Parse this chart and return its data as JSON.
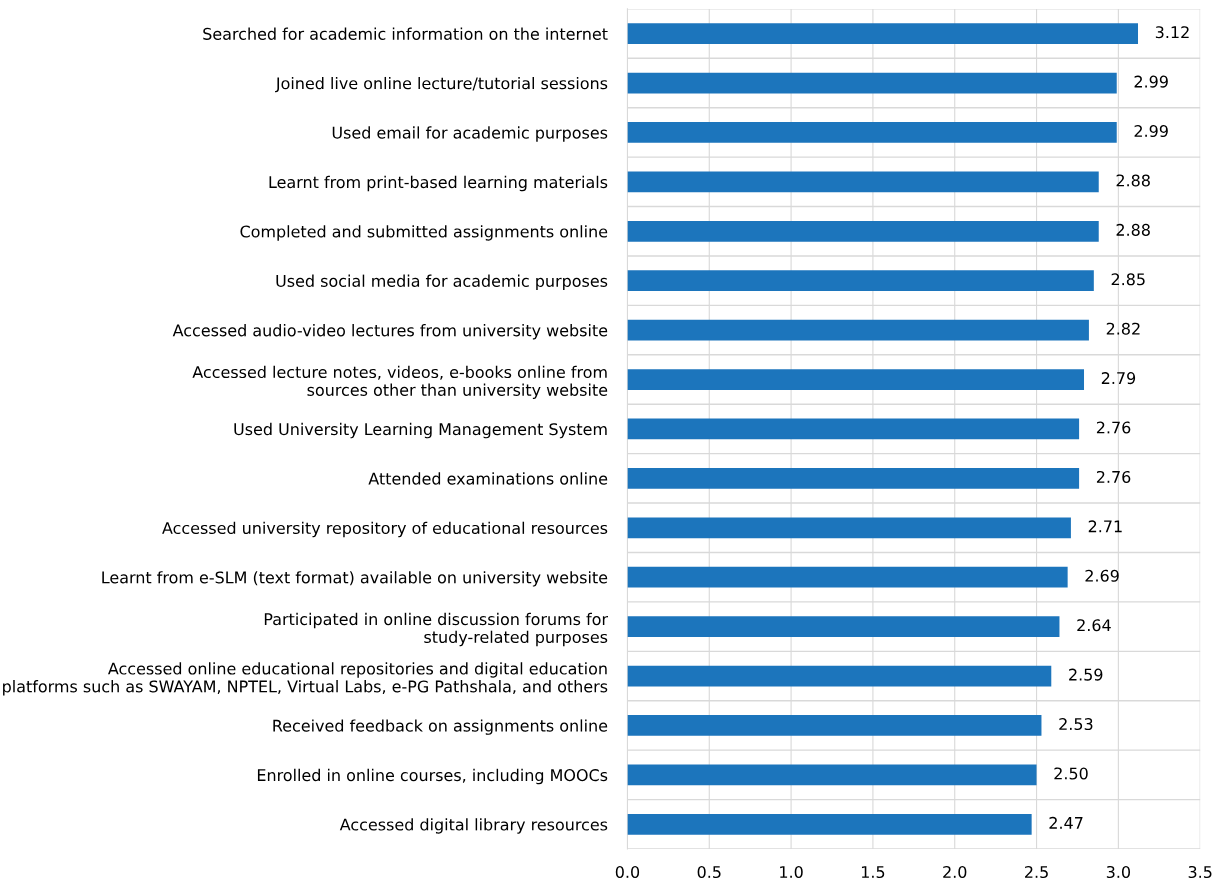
{
  "chart_data": {
    "type": "bar",
    "orientation": "horizontal",
    "categories": [
      "Searched for academic information on the internet",
      "Joined live online lecture/tutorial sessions",
      "Used email for academic purposes",
      "Learnt from print-based learning materials",
      "Completed and submitted assignments online",
      "Used social media for academic purposes",
      "Accessed audio-video lectures from university website",
      "Accessed lecture notes, videos, e-books online from\nsources other than university website",
      "Used University Learning Management System",
      "Attended examinations online",
      "Accessed university repository of educational resources",
      "Learnt from e-SLM (text format) available on university website",
      "Participated in online discussion forums for\nstudy-related purposes",
      "Accessed online educational repositories and digital education\nplatforms such as SWAYAM, NPTEL, Virtual Labs, e-PG Pathshala, and others",
      "Received feedback on assignments online",
      "Enrolled in online courses, including MOOCs",
      "Accessed digital library resources"
    ],
    "values": [
      3.12,
      2.99,
      2.99,
      2.88,
      2.88,
      2.85,
      2.82,
      2.79,
      2.76,
      2.76,
      2.71,
      2.69,
      2.64,
      2.59,
      2.53,
      2.5,
      2.47
    ],
    "value_labels": [
      "3.12",
      "2.99",
      "2.99",
      "2.88",
      "2.88",
      "2.85",
      "2.82",
      "2.79",
      "2.76",
      "2.76",
      "2.71",
      "2.69",
      "2.64",
      "2.59",
      "2.53",
      "2.50",
      "2.47"
    ],
    "color": "#1c75bc",
    "xlim": [
      0,
      3.5
    ],
    "xticks": [
      {
        "value": 0,
        "label": "0.0"
      },
      {
        "value": 0.5,
        "label": "0.5"
      },
      {
        "value": 1,
        "label": "1.0"
      },
      {
        "value": 1.5,
        "label": "1.5"
      },
      {
        "value": 2,
        "label": "2.0"
      },
      {
        "value": 2.5,
        "label": "2.5"
      },
      {
        "value": 3,
        "label": "3.0"
      },
      {
        "value": 3.5,
        "label": "3.5"
      }
    ],
    "grid": true,
    "legend": false
  }
}
